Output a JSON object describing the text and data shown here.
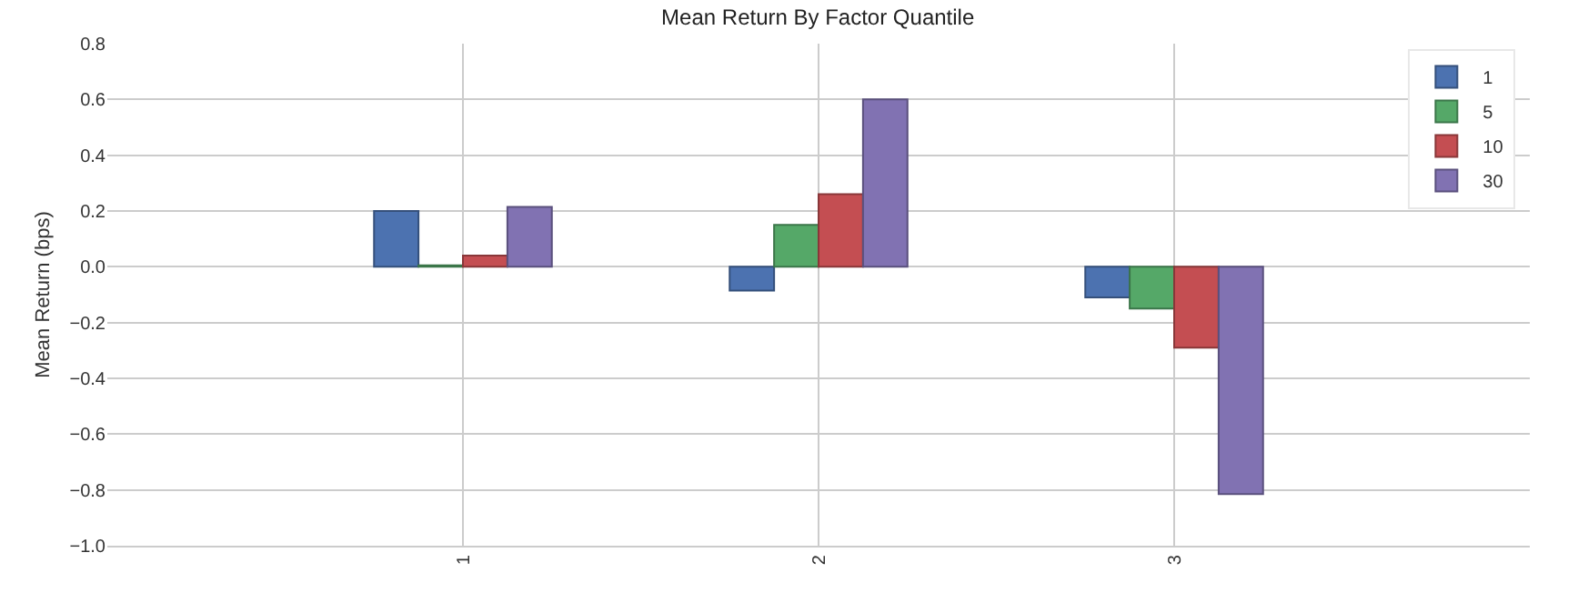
{
  "chart_data": {
    "type": "bar",
    "title": "Mean Return By Factor Quantile",
    "ylabel": "Mean Return (bps)",
    "categories": [
      "1",
      "2",
      "3"
    ],
    "series": [
      {
        "name": "1",
        "color": "#4c72b0",
        "values": [
          0.2,
          -0.085,
          -0.11
        ]
      },
      {
        "name": "5",
        "color": "#55a868",
        "values": [
          0.005,
          0.15,
          -0.15
        ]
      },
      {
        "name": "10",
        "color": "#c44e52",
        "values": [
          0.04,
          0.26,
          -0.29
        ]
      },
      {
        "name": "30",
        "color": "#8172b2",
        "values": [
          0.215,
          0.6,
          -0.815
        ]
      }
    ],
    "ylim": [
      -1.0,
      0.8
    ],
    "yticks": [
      {
        "value": -1.0,
        "label": "−1.0"
      },
      {
        "value": -0.8,
        "label": "−0.8"
      },
      {
        "value": -0.6,
        "label": "−0.6"
      },
      {
        "value": -0.4,
        "label": "−0.4"
      },
      {
        "value": -0.2,
        "label": "−0.2"
      },
      {
        "value": 0,
        "label": "0.0"
      },
      {
        "value": 0.2,
        "label": "0.2"
      },
      {
        "value": 0.4,
        "label": "0.4"
      },
      {
        "value": 0.6,
        "label": "0.6"
      },
      {
        "value": 0.8,
        "label": "0.8"
      }
    ],
    "grid": true,
    "legend": "top right"
  }
}
